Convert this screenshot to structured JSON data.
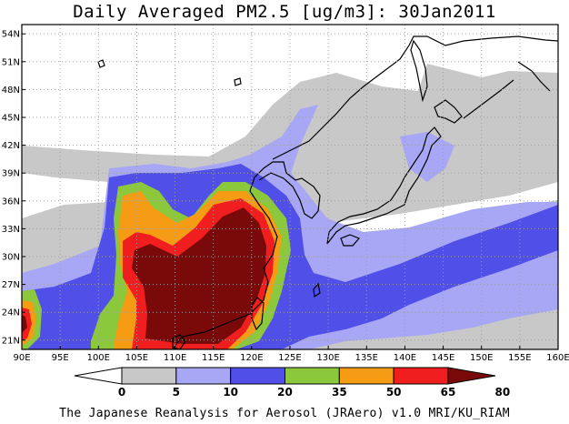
{
  "title": "Daily Averaged PM2.5 [ug/m3]: 30Jan2011",
  "credit": "The Japanese Reanalysis for Aerosol (JRAero) v1.0 MRI/KU_RIAM",
  "map": {
    "lon_range": [
      90,
      160
    ],
    "lat_range": [
      20,
      55
    ],
    "x_ticks": [
      "90E",
      "95E",
      "100E",
      "105E",
      "110E",
      "115E",
      "120E",
      "125E",
      "130E",
      "135E",
      "140E",
      "145E",
      "150E",
      "155E",
      "160E"
    ],
    "y_ticks": [
      "21N",
      "24N",
      "27N",
      "30N",
      "33N",
      "36N",
      "39N",
      "42N",
      "45N",
      "48N",
      "51N",
      "54N"
    ],
    "grid": "dotted"
  },
  "colorbar": {
    "labels": [
      "0",
      "5",
      "10",
      "20",
      "35",
      "50",
      "65",
      "80"
    ],
    "colors": [
      "#ffffff",
      "#c8c8c8",
      "#a7a7f5",
      "#5050e8",
      "#8cc83c",
      "#f59b14",
      "#f01e1e",
      "#7a0a0a"
    ]
  }
}
